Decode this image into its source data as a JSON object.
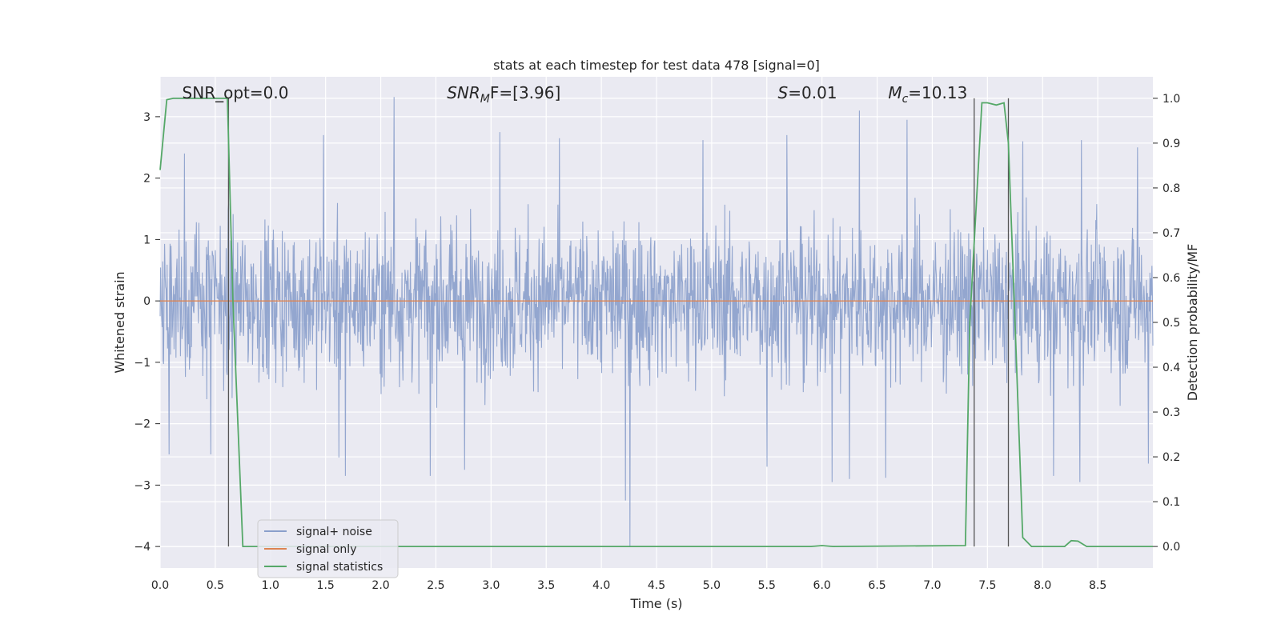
{
  "chart_data": {
    "type": "line",
    "title": "stats at each timestep for test data 478 [signal=0]",
    "xlabel": "Time (s)",
    "ylabel_left": "Whitened strain",
    "ylabel_right": "Detection probability/MF",
    "xlim": [
      0.0,
      9.0
    ],
    "ylim_left": [
      -4.35,
      3.65
    ],
    "ylim_right": [
      -0.048,
      1.048
    ],
    "x_ticks": [
      "0.0",
      "0.5",
      "1.0",
      "1.5",
      "2.0",
      "2.5",
      "3.0",
      "3.5",
      "4.0",
      "4.5",
      "5.0",
      "5.5",
      "6.0",
      "6.5",
      "7.0",
      "7.5",
      "8.0",
      "8.5"
    ],
    "y_ticks_left": [
      3,
      2,
      1,
      0,
      -1,
      -2,
      -3,
      -4
    ],
    "y_ticks_left_labels": [
      "3",
      "2",
      "1",
      "0",
      "−1",
      "−2",
      "−3",
      "−4"
    ],
    "y_ticks_right": [
      "1.0",
      "0.9",
      "0.8",
      "0.7",
      "0.6",
      "0.5",
      "0.4",
      "0.3",
      "0.2",
      "0.1",
      "0.0"
    ],
    "grid": true,
    "legend": "lower-left",
    "annotations": [
      {
        "id": "snr_opt",
        "text": "SNR_opt=0.0",
        "x": 0.2
      },
      {
        "id": "snr_mf",
        "main": "SNR",
        "sub": "M",
        "rest": "F=[3.96]",
        "x": 2.6
      },
      {
        "id": "s_val",
        "italic": "S",
        "rest": "=0.01",
        "x": 5.6
      },
      {
        "id": "mc_val",
        "italic": "M",
        "sub": "c",
        "rest": "=10.13",
        "x": 6.6
      }
    ],
    "vertical_markers": [
      0.62,
      7.38,
      7.69
    ],
    "noise_envelope": {
      "typical_upper": 1.8,
      "typical_lower": -1.8,
      "peaks_upper": [
        [
          0.22,
          2.4
        ],
        [
          0.46,
          2.65
        ],
        [
          1.48,
          2.7
        ],
        [
          2.12,
          3.32
        ],
        [
          3.08,
          2.75
        ],
        [
          3.62,
          2.65
        ],
        [
          4.92,
          2.62
        ],
        [
          5.68,
          2.7
        ],
        [
          6.34,
          3.1
        ],
        [
          6.77,
          2.95
        ],
        [
          7.82,
          2.6
        ],
        [
          8.35,
          2.62
        ],
        [
          8.86,
          2.5
        ]
      ],
      "peaks_lower": [
        [
          0.08,
          -2.5
        ],
        [
          0.46,
          -2.5
        ],
        [
          1.62,
          -2.55
        ],
        [
          1.68,
          -2.85
        ],
        [
          2.45,
          -2.85
        ],
        [
          2.76,
          -2.75
        ],
        [
          4.22,
          -3.25
        ],
        [
          4.26,
          -4.0
        ],
        [
          5.5,
          -2.7
        ],
        [
          6.09,
          -2.95
        ],
        [
          6.25,
          -2.9
        ],
        [
          6.58,
          -2.88
        ],
        [
          8.1,
          -2.85
        ],
        [
          8.34,
          -2.95
        ],
        [
          8.96,
          -2.65
        ]
      ]
    },
    "series": [
      {
        "name": "signal+ noise",
        "color": "#8a9fcb",
        "style": "dense_noise",
        "n_samples": 2000
      },
      {
        "name": "signal only",
        "color": "#dd8452",
        "x": [
          0.0,
          9.0
        ],
        "y": [
          0.0,
          0.0
        ]
      },
      {
        "name": "signal statistics",
        "color": "#55a868",
        "axis": "right",
        "x": [
          0.0,
          0.06,
          0.12,
          0.3,
          0.5,
          0.61,
          0.66,
          0.75,
          1.0,
          5.9,
          6.0,
          6.1,
          7.3,
          7.34,
          7.45,
          7.5,
          7.58,
          7.65,
          7.69,
          7.75,
          7.82,
          7.9,
          8.2,
          8.26,
          8.32,
          8.4,
          9.0
        ],
        "y": [
          0.84,
          0.997,
          1.0,
          1.0,
          1.0,
          1.0,
          0.55,
          0.0,
          0.0,
          0.0,
          0.002,
          0.0,
          0.002,
          0.5,
          0.99,
          0.99,
          0.985,
          0.99,
          0.9,
          0.5,
          0.02,
          0.0,
          0.0,
          0.013,
          0.012,
          0.0,
          0.0
        ]
      }
    ]
  }
}
